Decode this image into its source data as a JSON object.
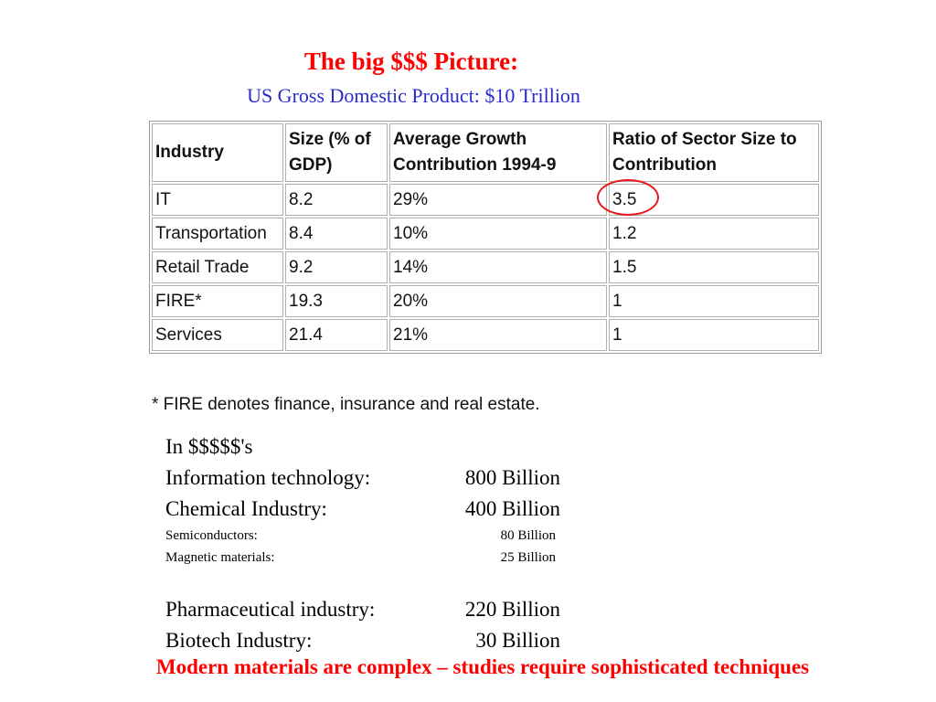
{
  "slide": {
    "title": "The big $$$ Picture:",
    "subtitle": "US Gross Domestic Product:  $10 Trillion",
    "title_color": "#ff0000",
    "subtitle_color": "#2b2bcc"
  },
  "table": {
    "headers": [
      "Industry",
      "Size (% of GDP)",
      "Average Growth Contribution 1994-9",
      "Ratio of Sector Size to Contribution"
    ],
    "rows": [
      [
        "IT",
        "8.2",
        "29%",
        "3.5"
      ],
      [
        "Transportation",
        "8.4",
        "10%",
        "1.2"
      ],
      [
        "Retail Trade",
        "9.2",
        "14%",
        "1.5"
      ],
      [
        "FIRE*",
        "19.3",
        "20%",
        "1"
      ],
      [
        "Services",
        "21.4",
        "21%",
        "1"
      ]
    ],
    "highlight_color": "#e8151b"
  },
  "footnote": "* FIRE denotes finance, insurance and real estate.",
  "money": {
    "heading": "In $$$$$'s",
    "lines": [
      {
        "label": "Information technology:",
        "value": "800 Billion"
      },
      {
        "label": "Chemical Industry:",
        "value": "400 Billion"
      },
      {
        "label": "Semiconductors:",
        "value": "80 Billion"
      },
      {
        "label": "Magnetic materials:",
        "value": "25 Billion"
      },
      {
        "label": "Pharmaceutical industry:",
        "value": "220 Billion"
      },
      {
        "label": "Biotech Industry:",
        "value": "30 Billion"
      }
    ]
  },
  "conclusion": "Modern materials are complex – studies require sophisticated techniques"
}
